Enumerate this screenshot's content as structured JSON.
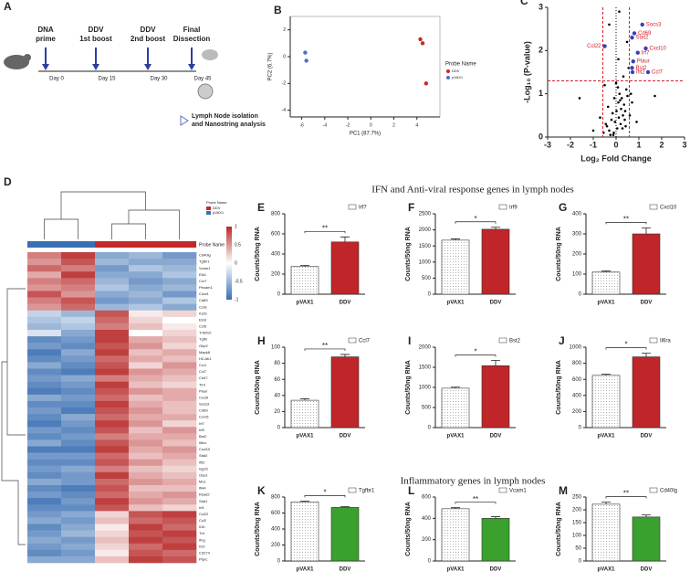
{
  "sections": [
    "IFN and Anti-viral response genes in lymph nodes",
    "Inflammatory genes in lymph nodes"
  ],
  "timeline": {
    "panel": "A",
    "events": [
      {
        "lines": [
          "DNA",
          "prime"
        ],
        "day": "Day 0"
      },
      {
        "lines": [
          "DDV",
          "1st boost"
        ],
        "day": "Day 15"
      },
      {
        "lines": [
          "DDV",
          "2nd boost"
        ],
        "day": "Day 30"
      },
      {
        "lines": [
          "Final",
          "Dissection"
        ],
        "day": "Day 45"
      }
    ],
    "note": [
      "Lymph Node isolation",
      "and Nanostring analysis"
    ]
  },
  "chart_data": [
    {
      "type": "scatter",
      "panel": "B",
      "xlabel": "PC1 (87.7%)",
      "ylabel": "PC2 (6.7%)",
      "xlim": [
        -7,
        6
      ],
      "ylim": [
        -4.5,
        3
      ],
      "xticks": [
        -6,
        -4,
        -2,
        0,
        2,
        4
      ],
      "yticks": [
        -4,
        -2,
        0,
        2
      ],
      "legend_title": "Probe Name",
      "series": [
        {
          "name": "DDV",
          "color": "#c62828",
          "x": [
            4.3,
            4.5,
            4.8
          ],
          "values": [
            1.3,
            1.0,
            -2.0
          ]
        },
        {
          "name": "pVAX1",
          "color": "#4a6fc8",
          "x": [
            -5.7,
            -5.6
          ],
          "values": [
            0.3,
            -0.3
          ]
        }
      ]
    },
    {
      "type": "volcano",
      "panel": "C",
      "xlabel": "Log₂ Fold Change",
      "ylabel": "-Log₁₀ (P-value)",
      "xlim": [
        -3,
        3
      ],
      "ylim": [
        0,
        3
      ],
      "xticks": [
        -3,
        -2,
        -1,
        0,
        1,
        2,
        3
      ],
      "yticks": [
        0,
        1,
        2,
        3
      ],
      "thresholds_x": [
        -0.58,
        0.58
      ],
      "threshold_y": 1.3,
      "color": "#000000",
      "highlight_color": "#3640b8",
      "label_color": "#d4202a",
      "x": [
        -0.1,
        0.05,
        0.2,
        -0.3,
        0.3,
        0.1,
        -0.2,
        0.4,
        -0.4,
        0.15,
        0.25,
        -0.05,
        0.35,
        -0.15,
        0.45,
        0.0,
        -0.25,
        0.12,
        0.22,
        -0.35,
        0.5,
        0.08,
        -0.45,
        0.28,
        0.18,
        -0.12,
        0.38,
        0.02,
        -0.08,
        0.42,
        0.6,
        0.7,
        -0.7,
        -1.0,
        0.9,
        -0.5,
        0.32,
        0.55,
        -0.55,
        0.14,
        1.7,
        -1.6,
        0.65,
        -0.3,
        0.48,
        0.1
      ],
      "values": [
        0.1,
        0.2,
        0.3,
        0.15,
        0.5,
        0.8,
        0.4,
        0.6,
        0.25,
        1.0,
        0.9,
        0.35,
        0.75,
        0.55,
        1.1,
        1.25,
        0.05,
        0.45,
        0.65,
        0.7,
        0.95,
        1.15,
        0.3,
        0.2,
        0.85,
        0.05,
        0.4,
        0.6,
        0.9,
        0.25,
        0.5,
        0.8,
        0.45,
        0.15,
        0.35,
        1.2,
        1.4,
        1.6,
        0.1,
        2.9,
        0.95,
        0.9,
        1.0,
        2.6,
        2.2,
        1.8
      ],
      "highlights": {
        "names": [
          "Socs3",
          "Cd69",
          "Stat2",
          "Ccl22",
          "Cxcl10",
          "Irf7",
          "Plaur",
          "Bst2",
          "Ifit2",
          "Ccl7"
        ],
        "x": [
          1.15,
          0.8,
          0.7,
          -0.5,
          1.3,
          0.95,
          0.75,
          0.7,
          0.72,
          1.4
        ],
        "values": [
          2.6,
          2.4,
          2.3,
          2.1,
          2.05,
          1.95,
          1.75,
          1.6,
          1.5,
          1.5
        ]
      }
    },
    {
      "type": "heatmap",
      "panel": "D",
      "header": "Probe Name",
      "legend_title": "Probe Name",
      "groups": [
        {
          "name": "DDV",
          "color": "#c62828"
        },
        {
          "name": "pVAX1",
          "color": "#3a6fb3"
        }
      ],
      "column_groups": [
        1,
        1,
        0,
        0,
        0
      ],
      "clim": [
        -1,
        1
      ],
      "cticks": [
        1,
        0.5,
        0,
        -0.5,
        -1
      ],
      "rows": [
        "Cd40lg",
        "Tgfbr1",
        "Vcam1",
        "Ets1",
        "Ccr7",
        "Pecam1",
        "Cxcr4",
        "Cd83",
        "Ccr8",
        "Il12b",
        "Ebi3",
        "Ccl5",
        "Tnfsf10",
        "Tgfbi",
        "Gbp2",
        "Mapk8",
        "H2-Ab1",
        "Ccr1",
        "Ccl7",
        "Cd47",
        "Tlr3",
        "Plaur",
        "Cxcl9",
        "Socs3",
        "Cd69",
        "Cxcr6",
        "Irf7",
        "Irf9",
        "Bst2",
        "Il6ra",
        "Cxcl10",
        "Stat2",
        "Ifit2",
        "Isg15",
        "Oas1",
        "Mx1",
        "Ifi44",
        "Rsad2",
        "Stat1",
        "Irf1",
        "Ccl22",
        "Ccl2",
        "Il1b",
        "Tnf",
        "Ifng",
        "Il10",
        "Cd274",
        "Ptprc"
      ],
      "values": [
        [
          0.6,
          0.9,
          -0.6,
          -0.5,
          -0.7
        ],
        [
          0.5,
          0.8,
          -0.5,
          -0.6,
          -0.6
        ],
        [
          0.7,
          0.6,
          -0.7,
          -0.4,
          -0.5
        ],
        [
          0.4,
          0.9,
          -0.6,
          -0.6,
          -0.4
        ],
        [
          0.6,
          0.7,
          -0.5,
          -0.7,
          -0.6
        ],
        [
          0.5,
          0.6,
          -0.4,
          -0.6,
          -0.5
        ],
        [
          0.8,
          0.5,
          -0.6,
          -0.5,
          -0.7
        ],
        [
          0.6,
          0.8,
          -0.7,
          -0.6,
          -0.4
        ],
        [
          0.5,
          0.7,
          -0.5,
          -0.4,
          -0.6
        ],
        [
          -0.3,
          -0.5,
          0.8,
          0.1,
          0.2
        ],
        [
          -0.4,
          -0.3,
          0.7,
          0.2,
          0.0
        ],
        [
          -0.5,
          -0.4,
          0.6,
          0.3,
          0.1
        ],
        [
          -0.2,
          -0.6,
          0.9,
          0.0,
          0.2
        ],
        [
          -0.8,
          -0.7,
          0.9,
          0.4,
          0.3
        ],
        [
          -0.7,
          -0.8,
          0.8,
          0.5,
          0.2
        ],
        [
          -0.9,
          -0.6,
          0.9,
          0.3,
          0.4
        ],
        [
          -0.8,
          -0.7,
          0.7,
          0.4,
          0.3
        ],
        [
          -0.6,
          -0.8,
          0.8,
          0.2,
          0.5
        ],
        [
          -0.8,
          -0.9,
          0.9,
          0.5,
          0.4
        ],
        [
          -0.7,
          -0.6,
          0.6,
          0.4,
          0.3
        ],
        [
          -0.8,
          -0.7,
          0.9,
          0.3,
          0.2
        ],
        [
          -0.9,
          -0.8,
          0.8,
          0.5,
          0.4
        ],
        [
          -0.6,
          -0.7,
          0.7,
          0.3,
          0.4
        ],
        [
          -0.8,
          -0.8,
          0.9,
          0.4,
          0.3
        ],
        [
          -0.7,
          -0.9,
          0.8,
          0.5,
          0.3
        ],
        [
          -0.8,
          -0.6,
          0.7,
          0.4,
          0.4
        ],
        [
          -0.9,
          -0.7,
          0.9,
          0.5,
          0.2
        ],
        [
          -0.7,
          -0.8,
          0.8,
          0.3,
          0.5
        ],
        [
          -0.8,
          -0.7,
          0.6,
          0.4,
          0.4
        ],
        [
          -0.6,
          -0.8,
          0.8,
          0.5,
          0.3
        ],
        [
          -0.9,
          -0.9,
          0.9,
          0.4,
          0.5
        ],
        [
          -0.7,
          -0.7,
          0.7,
          0.3,
          0.4
        ],
        [
          -0.8,
          -0.8,
          0.8,
          0.5,
          0.3
        ],
        [
          -0.7,
          -0.6,
          0.6,
          0.3,
          0.2
        ],
        [
          -0.8,
          -0.7,
          0.9,
          0.4,
          0.3
        ],
        [
          -0.6,
          -0.7,
          0.7,
          0.5,
          0.4
        ],
        [
          -0.8,
          -0.9,
          0.8,
          0.3,
          0.3
        ],
        [
          -0.7,
          -0.8,
          0.7,
          0.4,
          0.5
        ],
        [
          -0.9,
          -0.7,
          0.9,
          0.5,
          0.4
        ],
        [
          -0.8,
          -0.8,
          0.8,
          0.3,
          0.2
        ],
        [
          -0.7,
          -0.6,
          0.2,
          0.8,
          0.9
        ],
        [
          -0.6,
          -0.7,
          0.3,
          0.7,
          0.8
        ],
        [
          -0.8,
          -0.6,
          0.1,
          0.9,
          0.7
        ],
        [
          -0.7,
          -0.5,
          0.2,
          0.8,
          0.9
        ],
        [
          -0.6,
          -0.7,
          0.3,
          0.9,
          0.8
        ],
        [
          -0.7,
          -0.6,
          0.2,
          0.7,
          0.9
        ],
        [
          -0.8,
          -0.7,
          0.1,
          0.8,
          0.7
        ],
        [
          -0.6,
          -0.6,
          0.3,
          0.9,
          0.8
        ]
      ]
    },
    {
      "type": "bar",
      "panel": "E",
      "ylabel": "Counts/50ng RNA",
      "categories": [
        "pVAX1",
        "DDV"
      ],
      "ylim": [
        0,
        800
      ],
      "yticks": [
        0,
        200,
        400,
        600,
        800
      ],
      "significance": "**",
      "series": [
        {
          "name": "Irf7",
          "colors": [
            "#ffffff",
            "#c0252a"
          ],
          "hatched": [
            true,
            false
          ],
          "values": [
            275,
            520
          ],
          "errors": [
            10,
            50
          ]
        }
      ]
    },
    {
      "type": "bar",
      "panel": "F",
      "ylabel": "Counts/50ng RNA",
      "categories": [
        "pVAX1",
        "DDV"
      ],
      "ylim": [
        0,
        2500
      ],
      "yticks": [
        0,
        500,
        1000,
        1500,
        2000,
        2500
      ],
      "significance": "*",
      "series": [
        {
          "name": "Irf9",
          "colors": [
            "#ffffff",
            "#c0252a"
          ],
          "hatched": [
            true,
            false
          ],
          "values": [
            1680,
            2020
          ],
          "errors": [
            40,
            60
          ]
        }
      ]
    },
    {
      "type": "bar",
      "panel": "G",
      "ylabel": "Counts/50ng RNA",
      "categories": [
        "pVAX1",
        "DDV"
      ],
      "ylim": [
        0,
        400
      ],
      "yticks": [
        0,
        100,
        200,
        300,
        400
      ],
      "significance": "**",
      "series": [
        {
          "name": "Cxcl10",
          "colors": [
            "#ffffff",
            "#c0252a"
          ],
          "hatched": [
            true,
            false
          ],
          "values": [
            110,
            300
          ],
          "errors": [
            5,
            30
          ]
        }
      ]
    },
    {
      "type": "bar",
      "panel": "H",
      "ylabel": "Counts/50ng RNA",
      "categories": [
        "pVAX1",
        "DDV"
      ],
      "ylim": [
        0,
        100
      ],
      "yticks": [
        0,
        20,
        40,
        60,
        80,
        100
      ],
      "significance": "**",
      "series": [
        {
          "name": "Ccl7",
          "colors": [
            "#ffffff",
            "#c0252a"
          ],
          "hatched": [
            true,
            false
          ],
          "values": [
            34,
            88
          ],
          "errors": [
            2,
            3
          ]
        }
      ]
    },
    {
      "type": "bar",
      "panel": "I",
      "ylabel": "Counts/50ng RNA",
      "categories": [
        "pVAX1",
        "DDV"
      ],
      "ylim": [
        0,
        2000
      ],
      "yticks": [
        0,
        500,
        1000,
        1500,
        2000
      ],
      "significance": "*",
      "series": [
        {
          "name": "Bst2",
          "colors": [
            "#ffffff",
            "#c0252a"
          ],
          "hatched": [
            true,
            false
          ],
          "values": [
            980,
            1540
          ],
          "errors": [
            25,
            130
          ]
        }
      ]
    },
    {
      "type": "bar",
      "panel": "J",
      "ylabel": "Counts/50ng RNA",
      "categories": [
        "pVAX1",
        "DDV"
      ],
      "ylim": [
        0,
        1000
      ],
      "yticks": [
        0,
        200,
        400,
        600,
        800,
        1000
      ],
      "significance": "*",
      "series": [
        {
          "name": "Il6ra",
          "colors": [
            "#ffffff",
            "#c0252a"
          ],
          "hatched": [
            true,
            false
          ],
          "values": [
            650,
            880
          ],
          "errors": [
            15,
            45
          ]
        }
      ]
    },
    {
      "type": "bar",
      "panel": "K",
      "ylabel": "Counts/50ng RNA",
      "categories": [
        "pVAX1",
        "DDV"
      ],
      "ylim": [
        0,
        800
      ],
      "yticks": [
        0,
        200,
        400,
        600,
        800
      ],
      "significance": "*",
      "series": [
        {
          "name": "Tgfbr1",
          "colors": [
            "#ffffff",
            "#3aa02e"
          ],
          "hatched": [
            true,
            false
          ],
          "values": [
            740,
            670
          ],
          "errors": [
            10,
            10
          ]
        }
      ]
    },
    {
      "type": "bar",
      "panel": "L",
      "ylabel": "Counts/50ng RNA",
      "categories": [
        "pVAX1",
        "DDV"
      ],
      "ylim": [
        0,
        600
      ],
      "yticks": [
        0,
        200,
        400,
        600
      ],
      "significance": "**",
      "series": [
        {
          "name": "Vcam1",
          "colors": [
            "#ffffff",
            "#3aa02e"
          ],
          "hatched": [
            true,
            false
          ],
          "values": [
            490,
            400
          ],
          "errors": [
            10,
            15
          ]
        }
      ]
    },
    {
      "type": "bar",
      "panel": "M",
      "ylabel": "Counts/50ng RNA",
      "categories": [
        "pVAX1",
        "DDV"
      ],
      "ylim": [
        0,
        250
      ],
      "yticks": [
        0,
        50,
        100,
        150,
        200,
        250
      ],
      "significance": "**",
      "series": [
        {
          "name": "Cd40lg",
          "colors": [
            "#ffffff",
            "#3aa02e"
          ],
          "hatched": [
            true,
            false
          ],
          "values": [
            222,
            172
          ],
          "errors": [
            8,
            8
          ]
        }
      ]
    }
  ]
}
